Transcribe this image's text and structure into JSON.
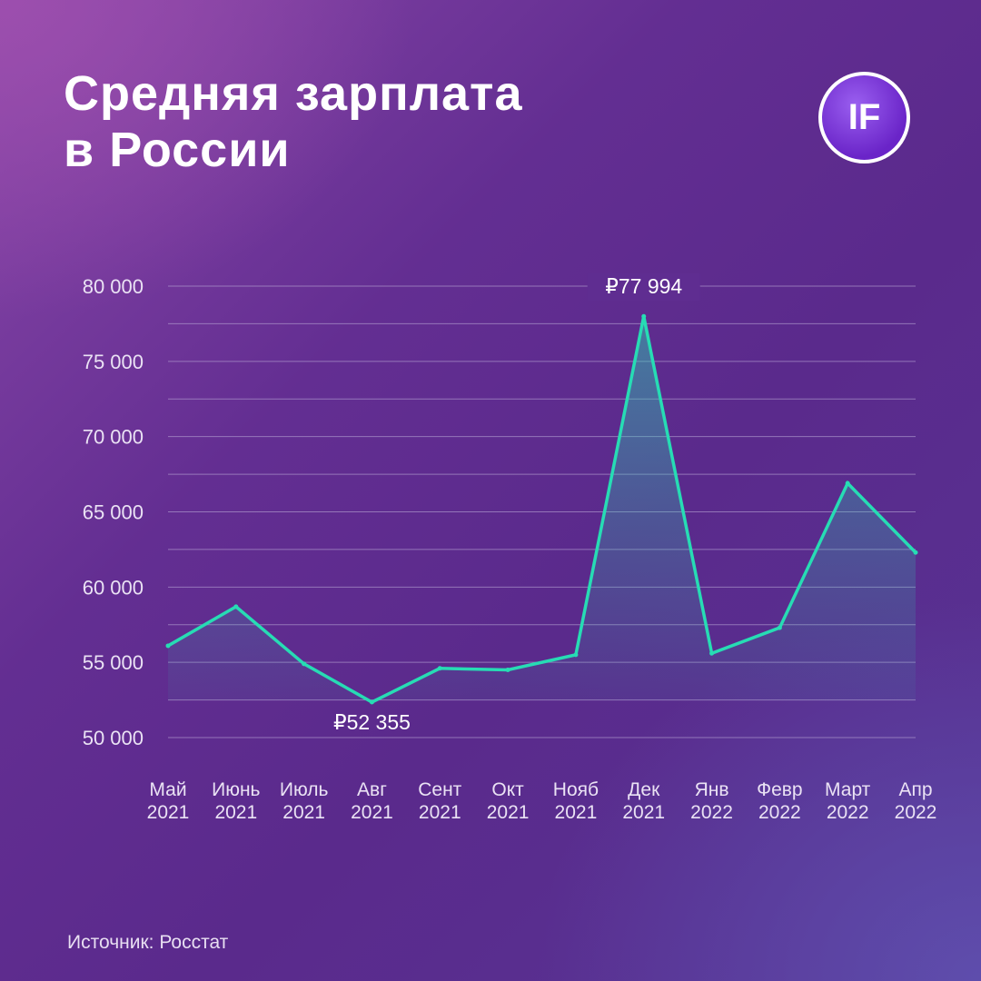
{
  "title": {
    "line1": "Средняя зарплата",
    "line2": "в России"
  },
  "logo": {
    "text": "IF"
  },
  "source": "Источник: Росстат",
  "colors": {
    "line": "#27dcb4",
    "grid": "#b9a6d6",
    "label": "#ffffff"
  },
  "chart_data": {
    "type": "area",
    "title": "Средняя зарплата в России",
    "categories": [
      [
        "Май",
        "2021"
      ],
      [
        "Июнь",
        "2021"
      ],
      [
        "Июль",
        "2021"
      ],
      [
        "Авг",
        "2021"
      ],
      [
        "Сент",
        "2021"
      ],
      [
        "Окт",
        "2021"
      ],
      [
        "Нояб",
        "2021"
      ],
      [
        "Дек",
        "2021"
      ],
      [
        "Янв",
        "2022"
      ],
      [
        "Февр",
        "2022"
      ],
      [
        "Март",
        "2022"
      ],
      [
        "Апр",
        "2022"
      ]
    ],
    "series": [
      {
        "values": [
          56100,
          58700,
          54900,
          52355,
          54600,
          54500,
          55500,
          77994,
          55600,
          57300,
          66900,
          62300
        ]
      }
    ],
    "ylim": [
      50000,
      80000
    ],
    "yticks": [
      {
        "value": 80000,
        "label": "80 000"
      },
      {
        "value": 75000,
        "label": "75 000"
      },
      {
        "value": 70000,
        "label": "70 000"
      },
      {
        "value": 65000,
        "label": "65 000"
      },
      {
        "value": 60000,
        "label": "60 000"
      },
      {
        "value": 55000,
        "label": "55 000"
      },
      {
        "value": 50000,
        "label": "50 000"
      }
    ],
    "gridlines": [
      80000,
      77500,
      75000,
      72500,
      70000,
      67500,
      65000,
      62500,
      60000,
      57500,
      55000,
      52500,
      50000
    ],
    "annotations": [
      {
        "index": 7,
        "label": "₽77 994"
      },
      {
        "index": 3,
        "label": "₽52 355"
      }
    ],
    "grid": true
  }
}
